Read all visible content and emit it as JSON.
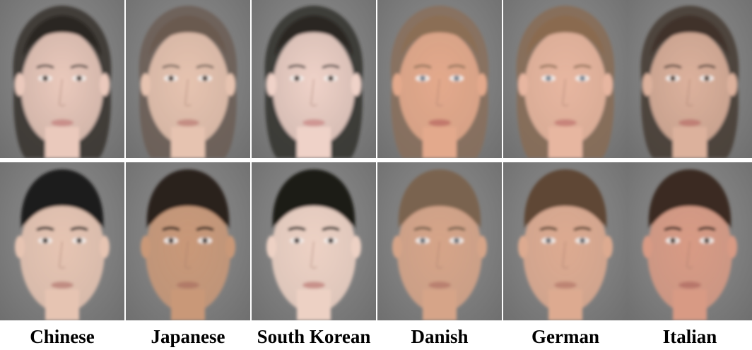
{
  "labels": [
    "Chinese",
    "Japanese",
    "South Korean",
    "Danish",
    "German",
    "Italian"
  ],
  "faces": {
    "female": [
      {
        "skin": "#eac9bc",
        "hair": "#2b2522",
        "eye": "#3a2a22",
        "lip": "#c98f8a"
      },
      {
        "skin": "#e6c3b0",
        "hair": "#6a5a50",
        "eye": "#3a2a22",
        "lip": "#c48d83"
      },
      {
        "skin": "#efd2c8",
        "hair": "#2a2524",
        "eye": "#3a2a22",
        "lip": "#cf9693"
      },
      {
        "skin": "#e3a98c",
        "hair": "#8b6e55",
        "eye": "#6d7c8a",
        "lip": "#c2786c"
      },
      {
        "skin": "#e7b6a0",
        "hair": "#8a6a4f",
        "eye": "#6f8190",
        "lip": "#c8847a"
      },
      {
        "skin": "#dcb19c",
        "hair": "#3f3129",
        "eye": "#4a3528",
        "lip": "#bf7f74"
      }
    ],
    "male": [
      {
        "skin": "#e6c4b2",
        "hair": "#1f1c1b",
        "eye": "#2e2420",
        "lip": "#c08c82"
      },
      {
        "skin": "#c99878",
        "hair": "#2a211c",
        "eye": "#2e2420",
        "lip": "#b17a68"
      },
      {
        "skin": "#edd1c4",
        "hair": "#1c1a19",
        "eye": "#2e2420",
        "lip": "#c8918a"
      },
      {
        "skin": "#d6a488",
        "hair": "#7a644f",
        "eye": "#5c6670",
        "lip": "#b9806f"
      },
      {
        "skin": "#ddaa90",
        "hair": "#5e4634",
        "eye": "#5a6068",
        "lip": "#bd8473"
      },
      {
        "skin": "#d89a84",
        "hair": "#3a2b23",
        "eye": "#3e2e26",
        "lip": "#b7766a"
      }
    ]
  }
}
